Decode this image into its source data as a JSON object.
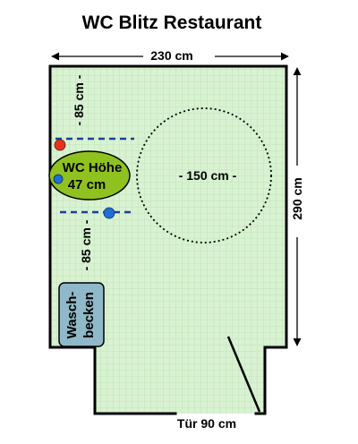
{
  "title": "WC Blitz Restaurant",
  "dimensions": {
    "width": "230 cm",
    "height": "290 cm",
    "turning_circle": "- 150 cm -",
    "side_space_top": "- 85 cm -",
    "side_space_bottom": "- 85 cm -",
    "door": "Tür 90 cm"
  },
  "toilet": {
    "line1": "WC Höhe",
    "line2": "47 cm"
  },
  "sink": {
    "line1": "Wasch-",
    "line2": "becken"
  },
  "colors": {
    "floor": "#d8f2d2",
    "grid": "#b9e0b3",
    "wall": "#000000",
    "toilet_fill": "#8fc21f",
    "sink_fill": "#8fb8c8",
    "grab_bar": "#1f3f9a",
    "red_marker": "#e8321e",
    "blue_marker": "#1f6fd0"
  }
}
